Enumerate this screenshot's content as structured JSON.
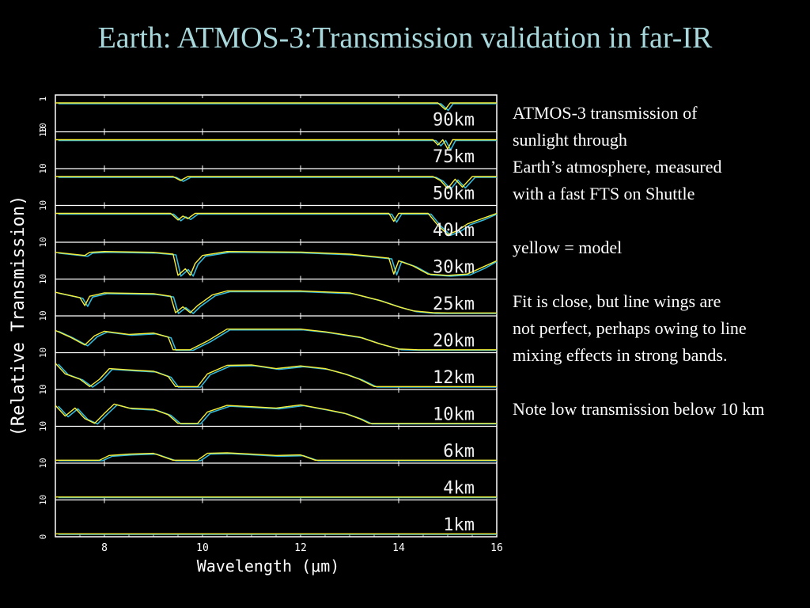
{
  "slide": {
    "title": "Earth: ATMOS-3:Transmission validation in far-IR"
  },
  "notes": {
    "para1_lines": [
      "ATMOS-3 transmission of",
      "sunlight through",
      "Earth’s atmosphere, measured",
      "with a fast FTS on Shuttle"
    ],
    "para2": "yellow = model",
    "para3_lines": [
      "Fit is close, but line wings are",
      "not perfect, perhaps owing to line",
      "mixing effects in strong bands."
    ],
    "para4": "Note low transmission below 10 km"
  },
  "chart_data": {
    "type": "line",
    "xlabel": "Wavelength (μm)",
    "ylabel": "(Relative Transmission)",
    "xlim": [
      7,
      16
    ],
    "x_ticks": [
      "8",
      "10",
      "12",
      "14",
      "16"
    ],
    "panel_y_ticks": [
      [
        "1",
        "10"
      ],
      [
        "10"
      ],
      [
        "10"
      ],
      [
        "10"
      ],
      [
        "10"
      ],
      [
        "10"
      ],
      [
        "10"
      ],
      [
        "10"
      ],
      [
        "10"
      ],
      [
        "10"
      ],
      [
        "10"
      ],
      [
        "10"
      ],
      [
        "0"
      ]
    ],
    "grid": false,
    "background": "#000000",
    "axis_color": "#ffffff",
    "series": [
      {
        "name": "yellow = model",
        "color": "#f5ef3a"
      },
      {
        "color": "#35b8d8"
      }
    ],
    "panels": [
      {
        "label": "90km",
        "points": [
          [
            7,
            1
          ],
          [
            14.8,
            1
          ],
          [
            14.95,
            0.75
          ],
          [
            15.05,
            1
          ],
          [
            16,
            1
          ]
        ]
      },
      {
        "label": "75km",
        "points": [
          [
            7,
            1
          ],
          [
            14.7,
            1
          ],
          [
            14.8,
            0.8
          ],
          [
            14.9,
            1
          ],
          [
            15,
            0.65
          ],
          [
            15.1,
            1
          ],
          [
            16,
            1
          ]
        ]
      },
      {
        "label": "50km",
        "points": [
          [
            7,
            1
          ],
          [
            9.4,
            1
          ],
          [
            9.55,
            0.85
          ],
          [
            9.7,
            1
          ],
          [
            14.7,
            1
          ],
          [
            14.85,
            0.85
          ],
          [
            15,
            0.55
          ],
          [
            15.15,
            0.9
          ],
          [
            15.3,
            0.6
          ],
          [
            15.5,
            1
          ],
          [
            16,
            1
          ]
        ]
      },
      {
        "label": "40km",
        "points": [
          [
            7,
            1
          ],
          [
            9.35,
            1
          ],
          [
            9.5,
            0.75
          ],
          [
            9.6,
            0.9
          ],
          [
            9.7,
            0.8
          ],
          [
            9.85,
            1
          ],
          [
            13.8,
            1
          ],
          [
            13.9,
            0.7
          ],
          [
            14,
            1
          ],
          [
            14.6,
            1
          ],
          [
            14.8,
            0.55
          ],
          [
            15,
            0.2
          ],
          [
            15.2,
            0.35
          ],
          [
            15.4,
            0.6
          ],
          [
            15.7,
            0.8
          ],
          [
            16,
            1
          ]
        ]
      },
      {
        "label": "30km",
        "points": [
          [
            7,
            0.92
          ],
          [
            7.6,
            0.8
          ],
          [
            7.7,
            0.92
          ],
          [
            8,
            0.95
          ],
          [
            9,
            0.92
          ],
          [
            9.4,
            0.85
          ],
          [
            9.5,
            0.05
          ],
          [
            9.65,
            0.3
          ],
          [
            9.75,
            0.05
          ],
          [
            9.85,
            0.5
          ],
          [
            10,
            0.8
          ],
          [
            10.5,
            0.95
          ],
          [
            12,
            0.93
          ],
          [
            13,
            0.85
          ],
          [
            13.8,
            0.7
          ],
          [
            13.9,
            0.1
          ],
          [
            14,
            0.6
          ],
          [
            14.3,
            0.4
          ],
          [
            14.6,
            0.1
          ],
          [
            15,
            0.05
          ],
          [
            15.4,
            0.1
          ],
          [
            15.7,
            0.35
          ],
          [
            16,
            0.6
          ]
        ]
      },
      {
        "label": "25km",
        "points": [
          [
            7,
            0.8
          ],
          [
            7.5,
            0.6
          ],
          [
            7.6,
            0.3
          ],
          [
            7.7,
            0.65
          ],
          [
            8,
            0.78
          ],
          [
            9,
            0.75
          ],
          [
            9.35,
            0.65
          ],
          [
            9.45,
            0.03
          ],
          [
            9.6,
            0.25
          ],
          [
            9.75,
            0.03
          ],
          [
            9.9,
            0.3
          ],
          [
            10.2,
            0.7
          ],
          [
            10.5,
            0.85
          ],
          [
            12,
            0.85
          ],
          [
            13,
            0.78
          ],
          [
            13.6,
            0.5
          ],
          [
            14,
            0.25
          ],
          [
            14.3,
            0.1
          ],
          [
            14.7,
            0.03
          ],
          [
            15,
            0.02
          ],
          [
            16,
            0.02
          ]
        ]
      },
      {
        "label": "20km",
        "points": [
          [
            7,
            0.75
          ],
          [
            7.3,
            0.5
          ],
          [
            7.6,
            0.2
          ],
          [
            7.8,
            0.55
          ],
          [
            8,
            0.72
          ],
          [
            8.5,
            0.6
          ],
          [
            9,
            0.65
          ],
          [
            9.3,
            0.5
          ],
          [
            9.4,
            0.02
          ],
          [
            9.75,
            0.02
          ],
          [
            10.1,
            0.35
          ],
          [
            10.5,
            0.8
          ],
          [
            12,
            0.8
          ],
          [
            12.5,
            0.7
          ],
          [
            13.2,
            0.5
          ],
          [
            13.6,
            0.25
          ],
          [
            14,
            0.05
          ],
          [
            14.4,
            0.02
          ],
          [
            16,
            0.02
          ]
        ]
      },
      {
        "label": "12km",
        "points": [
          [
            7,
            0.9
          ],
          [
            7.2,
            0.5
          ],
          [
            7.5,
            0.3
          ],
          [
            7.7,
            0.02
          ],
          [
            7.9,
            0.3
          ],
          [
            8.1,
            0.7
          ],
          [
            8.5,
            0.65
          ],
          [
            9,
            0.6
          ],
          [
            9.3,
            0.4
          ],
          [
            9.45,
            0.02
          ],
          [
            9.9,
            0.02
          ],
          [
            10.1,
            0.5
          ],
          [
            10.5,
            0.82
          ],
          [
            11,
            0.84
          ],
          [
            11.5,
            0.7
          ],
          [
            12,
            0.8
          ],
          [
            12.5,
            0.7
          ],
          [
            12.9,
            0.5
          ],
          [
            13.2,
            0.3
          ],
          [
            13.5,
            0.02
          ],
          [
            16,
            0.02
          ]
        ]
      },
      {
        "label": "10km",
        "points": [
          [
            7,
            0.7
          ],
          [
            7.2,
            0.3
          ],
          [
            7.4,
            0.6
          ],
          [
            7.6,
            0.2
          ],
          [
            7.8,
            0.02
          ],
          [
            8,
            0.4
          ],
          [
            8.2,
            0.75
          ],
          [
            8.5,
            0.6
          ],
          [
            9,
            0.55
          ],
          [
            9.3,
            0.35
          ],
          [
            9.5,
            0.02
          ],
          [
            9.9,
            0.02
          ],
          [
            10.1,
            0.45
          ],
          [
            10.5,
            0.7
          ],
          [
            11,
            0.65
          ],
          [
            11.5,
            0.6
          ],
          [
            12,
            0.72
          ],
          [
            12.5,
            0.55
          ],
          [
            12.9,
            0.4
          ],
          [
            13.2,
            0.2
          ],
          [
            13.4,
            0.02
          ],
          [
            16,
            0.02
          ]
        ]
      },
      {
        "label": "6km",
        "points": [
          [
            7,
            0.02
          ],
          [
            7.9,
            0.02
          ],
          [
            8.1,
            0.2
          ],
          [
            8.5,
            0.25
          ],
          [
            9,
            0.28
          ],
          [
            9.4,
            0.02
          ],
          [
            9.9,
            0.02
          ],
          [
            10.1,
            0.28
          ],
          [
            10.5,
            0.3
          ],
          [
            11,
            0.25
          ],
          [
            11.5,
            0.2
          ],
          [
            12,
            0.22
          ],
          [
            12.3,
            0.02
          ],
          [
            16,
            0.02
          ]
        ]
      },
      {
        "label": "4km",
        "points": [
          [
            7,
            0.02
          ],
          [
            16,
            0.02
          ]
        ]
      },
      {
        "label": "1km",
        "points": [
          [
            7,
            0.02
          ],
          [
            16,
            0.02
          ]
        ]
      }
    ]
  }
}
